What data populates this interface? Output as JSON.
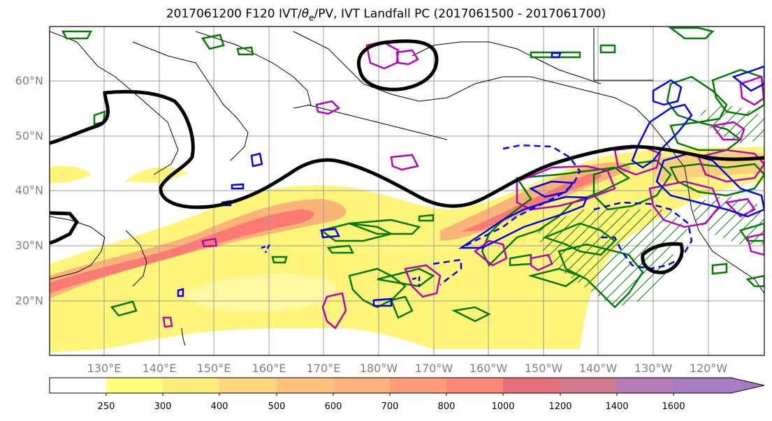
{
  "title": {
    "text_before": "2017061200 F120 IVT/",
    "theta_symbol": "θ",
    "theta_sub": "e",
    "text_after": "/PV, IVT Landfall PC (2017061500 - 2017061700)"
  },
  "lat_labels": [
    "60°N",
    "50°N",
    "40°N",
    "30°N",
    "20°N"
  ],
  "lon_labels": [
    "130°E",
    "140°E",
    "150°E",
    "160°E",
    "170°E",
    "180°W",
    "170°W",
    "160°W",
    "150°W",
    "140°W",
    "130°W",
    "120°W"
  ],
  "colorbar": {
    "ticks": [
      "250",
      "300",
      "400",
      "500",
      "600",
      "700",
      "800",
      "1000",
      "1200",
      "1400",
      "1600"
    ],
    "colors": [
      "#ffffff",
      "#ffff7a",
      "#ffec7a",
      "#ffd580",
      "#ffc27e",
      "#ffb27e",
      "#ff9a78",
      "#fe8576",
      "#e8707e",
      "#d27a92",
      "#b47bb6",
      "#a87cc4"
    ]
  },
  "colors": {
    "ivt_low": "#fff57a",
    "ivt_high": "#fb7b74",
    "theta_e": "#007a00",
    "pv": "#0000ee",
    "landfall": "#bb00bb",
    "wave_guide": "#000000",
    "grid": "#9a9a9a",
    "tick_label": "#808080"
  }
}
